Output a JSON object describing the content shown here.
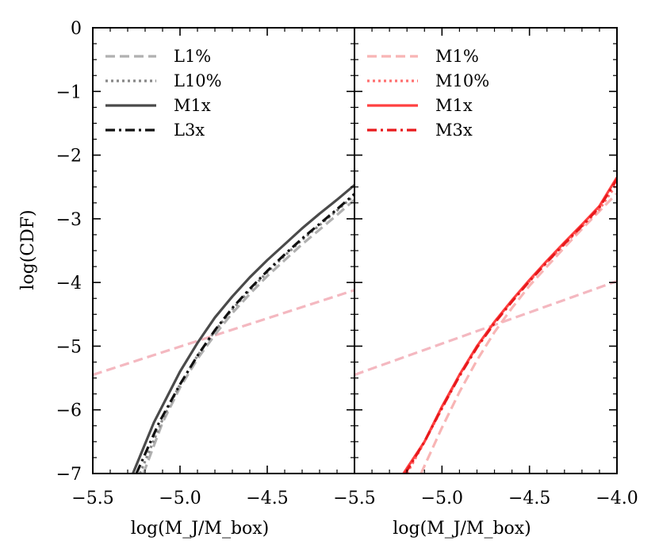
{
  "chart_data": [
    {
      "type": "line",
      "panel": "left",
      "xlabel": "log(M_J/M_box)",
      "ylabel": "log(CDF)",
      "xlim": [
        -5.5,
        -4.0
      ],
      "ylim": [
        -7,
        0
      ],
      "xticks": [
        -5.5,
        -5.0,
        -4.5
      ],
      "xtick_labels": [
        "−5.5",
        "−5.0",
        "−4.5"
      ],
      "yticks": [
        0,
        -1,
        -2,
        -3,
        -4,
        -5,
        -6,
        -7
      ],
      "ytick_labels": [
        "0",
        "−1",
        "−2",
        "−3",
        "−4",
        "−5",
        "−6",
        "−7"
      ],
      "legend_location": "top-left",
      "series": [
        {
          "name": "L1%",
          "color": "#b0b0b0",
          "style": "dashed",
          "in_legend": true,
          "x": [
            -5.21,
            -5.1,
            -5.0,
            -4.9,
            -4.8,
            -4.7,
            -4.6,
            -4.5,
            -4.4,
            -4.3,
            -4.2,
            -4.1,
            -4.0
          ],
          "y": [
            -7.0,
            -6.2,
            -5.65,
            -5.2,
            -4.82,
            -4.48,
            -4.18,
            -3.9,
            -3.65,
            -3.4,
            -3.17,
            -2.94,
            -2.7
          ]
        },
        {
          "name": "L10%",
          "color": "#888888",
          "style": "dotted",
          "in_legend": true,
          "x": [
            -5.23,
            -5.1,
            -5.0,
            -4.9,
            -4.8,
            -4.7,
            -4.6,
            -4.5,
            -4.4,
            -4.3,
            -4.2,
            -4.1,
            -4.0
          ],
          "y": [
            -7.0,
            -6.15,
            -5.6,
            -5.15,
            -4.76,
            -4.42,
            -4.12,
            -3.84,
            -3.58,
            -3.33,
            -3.1,
            -2.87,
            -2.63
          ]
        },
        {
          "name": "M1x",
          "color": "#4a4a4a",
          "style": "solid",
          "in_legend": true,
          "x": [
            -5.27,
            -5.15,
            -5.0,
            -4.9,
            -4.8,
            -4.7,
            -4.6,
            -4.5,
            -4.4,
            -4.3,
            -4.2,
            -4.1,
            -4.0
          ],
          "y": [
            -7.0,
            -6.2,
            -5.4,
            -4.95,
            -4.55,
            -4.22,
            -3.92,
            -3.65,
            -3.4,
            -3.15,
            -2.92,
            -2.7,
            -2.47
          ]
        },
        {
          "name": "L3x",
          "color": "#111111",
          "style": "dashdot",
          "in_legend": true,
          "x": [
            -5.25,
            -5.12,
            -5.0,
            -4.9,
            -4.8,
            -4.7,
            -4.6,
            -4.5,
            -4.4,
            -4.3,
            -4.2,
            -4.1,
            -4.0
          ],
          "y": [
            -7.0,
            -6.2,
            -5.6,
            -5.15,
            -4.75,
            -4.4,
            -4.1,
            -3.82,
            -3.56,
            -3.31,
            -3.08,
            -2.85,
            -2.61
          ]
        },
        {
          "name": "reference",
          "color": "#f4b8c0",
          "style": "dashed",
          "in_legend": false,
          "x": [
            -5.5,
            -4.0
          ],
          "y": [
            -5.45,
            -4.12
          ]
        }
      ]
    },
    {
      "type": "line",
      "panel": "right",
      "xlabel": "log(M_J/M_box)",
      "ylabel": "",
      "xlim": [
        -5.5,
        -4.0
      ],
      "ylim": [
        -7,
        0
      ],
      "xticks": [
        -5.5,
        -5.0,
        -4.5,
        -4.0
      ],
      "xtick_labels": [
        "−5.5",
        "−5.0",
        "−4.5",
        "−4.0"
      ],
      "legend_location": "top-left",
      "series": [
        {
          "name": "M1%",
          "color": "#f8b5b5",
          "style": "dashed",
          "in_legend": true,
          "x": [
            -5.12,
            -5.0,
            -4.9,
            -4.8,
            -4.7,
            -4.6,
            -4.5,
            -4.4,
            -4.3,
            -4.2,
            -4.1,
            -4.0
          ],
          "y": [
            -7.0,
            -6.28,
            -5.72,
            -5.22,
            -4.78,
            -4.4,
            -4.05,
            -3.75,
            -3.45,
            -3.16,
            -2.88,
            -2.6
          ]
        },
        {
          "name": "M10%",
          "color": "#ff7070",
          "style": "dotted",
          "in_legend": true,
          "x": [
            -5.2,
            -5.1,
            -5.0,
            -4.9,
            -4.8,
            -4.7,
            -4.6,
            -4.5,
            -4.4,
            -4.3,
            -4.2,
            -4.1,
            -4.0
          ],
          "y": [
            -7.0,
            -6.5,
            -5.98,
            -5.45,
            -5.0,
            -4.62,
            -4.28,
            -3.98,
            -3.68,
            -3.4,
            -3.12,
            -2.85,
            -2.45
          ]
        },
        {
          "name": "M1x",
          "color": "#ff4040",
          "style": "solid",
          "in_legend": true,
          "x": [
            -5.22,
            -5.1,
            -5.0,
            -4.9,
            -4.8,
            -4.7,
            -4.6,
            -4.5,
            -4.4,
            -4.3,
            -4.2,
            -4.1,
            -4.0
          ],
          "y": [
            -7.0,
            -6.5,
            -5.95,
            -5.45,
            -5.0,
            -4.62,
            -4.28,
            -3.96,
            -3.66,
            -3.37,
            -3.09,
            -2.8,
            -2.35
          ]
        },
        {
          "name": "M3x",
          "color": "#e8191c",
          "style": "dashdot",
          "in_legend": true,
          "x": [
            -5.21,
            -5.1,
            -5.0,
            -4.9,
            -4.8,
            -4.7,
            -4.6,
            -4.5,
            -4.4,
            -4.3,
            -4.2,
            -4.1,
            -4.0
          ],
          "y": [
            -7.0,
            -6.5,
            -5.97,
            -5.47,
            -5.02,
            -4.64,
            -4.3,
            -3.98,
            -3.68,
            -3.39,
            -3.11,
            -2.82,
            -2.38
          ]
        },
        {
          "name": "reference",
          "color": "#f4b8c0",
          "style": "dashed",
          "in_legend": false,
          "x": [
            -5.5,
            -4.0
          ],
          "y": [
            -5.45,
            -3.98
          ]
        }
      ]
    }
  ]
}
